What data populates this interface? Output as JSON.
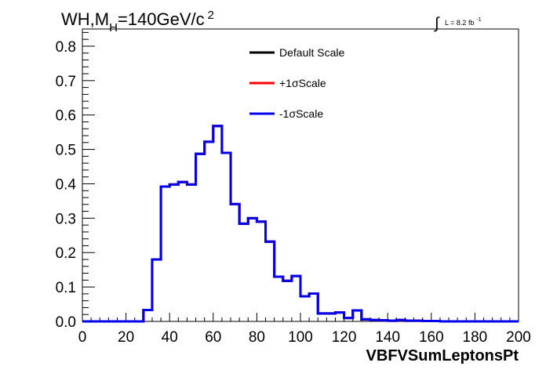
{
  "header": {
    "title_main": "WH,M",
    "title_sub": "H",
    "title_rest": "=140GeV/c",
    "title_sup": "2",
    "lumi_integral": "∫",
    "lumi_text": "L = 8.2 fb",
    "lumi_sup": "-1"
  },
  "chart_data": {
    "type": "line",
    "title": "WH,MH=140GeV/c2",
    "xlabel": "VBFVSumLeptonsPt",
    "ylabel": "",
    "xlim": [
      0,
      200
    ],
    "ylim": [
      0,
      0.85
    ],
    "x_ticks": [
      0,
      20,
      40,
      60,
      80,
      100,
      120,
      140,
      160,
      180,
      200
    ],
    "y_ticks": [
      0.0,
      0.1,
      0.2,
      0.3,
      0.4,
      0.5,
      0.6,
      0.7,
      0.8
    ],
    "x_tick_labels": [
      "0",
      "20",
      "40",
      "60",
      "80",
      "100",
      "120",
      "140",
      "160",
      "180",
      "200"
    ],
    "y_tick_labels": [
      "0.0",
      "0.1",
      "0.2",
      "0.3",
      "0.4",
      "0.5",
      "0.6",
      "0.7",
      "0.8"
    ],
    "bin_width": 4,
    "bin_edges_start": 0,
    "legend_placement": "top-center",
    "series": [
      {
        "name": "Default Scale",
        "color": "#000000",
        "values": [
          0,
          0,
          0,
          0,
          0,
          0,
          0,
          0.033,
          0.18,
          0.392,
          0.398,
          0.405,
          0.398,
          0.487,
          0.522,
          0.568,
          0.49,
          0.341,
          0.284,
          0.3,
          0.29,
          0.232,
          0.13,
          0.118,
          0.132,
          0.073,
          0.081,
          0.023,
          0.023,
          0.026,
          0.01,
          0.032,
          0.006,
          0.004,
          0.003,
          0.002,
          0.004,
          0.002,
          0.002,
          0.001,
          0.001,
          0,
          0,
          0,
          0,
          0,
          0,
          0,
          0,
          0
        ]
      },
      {
        "name": "+1σScale",
        "color": "#ff0000",
        "values": [
          0,
          0,
          0,
          0,
          0,
          0,
          0,
          0.033,
          0.18,
          0.392,
          0.398,
          0.405,
          0.398,
          0.487,
          0.522,
          0.568,
          0.49,
          0.341,
          0.284,
          0.3,
          0.29,
          0.232,
          0.13,
          0.118,
          0.132,
          0.073,
          0.081,
          0.023,
          0.023,
          0.026,
          0.01,
          0.032,
          0.006,
          0.004,
          0.003,
          0.002,
          0.004,
          0.002,
          0.002,
          0.001,
          0.001,
          0,
          0,
          0,
          0,
          0,
          0,
          0,
          0,
          0
        ]
      },
      {
        "name": "-1σScale",
        "color": "#0000ee",
        "values": [
          0,
          0,
          0,
          0,
          0,
          0,
          0,
          0.033,
          0.18,
          0.392,
          0.398,
          0.405,
          0.398,
          0.487,
          0.522,
          0.568,
          0.49,
          0.341,
          0.284,
          0.3,
          0.29,
          0.232,
          0.13,
          0.118,
          0.132,
          0.073,
          0.081,
          0.023,
          0.023,
          0.026,
          0.01,
          0.032,
          0.006,
          0.004,
          0.003,
          0.002,
          0.004,
          0.002,
          0.002,
          0.001,
          0.001,
          0,
          0,
          0,
          0,
          0,
          0,
          0,
          0,
          0
        ]
      }
    ]
  }
}
